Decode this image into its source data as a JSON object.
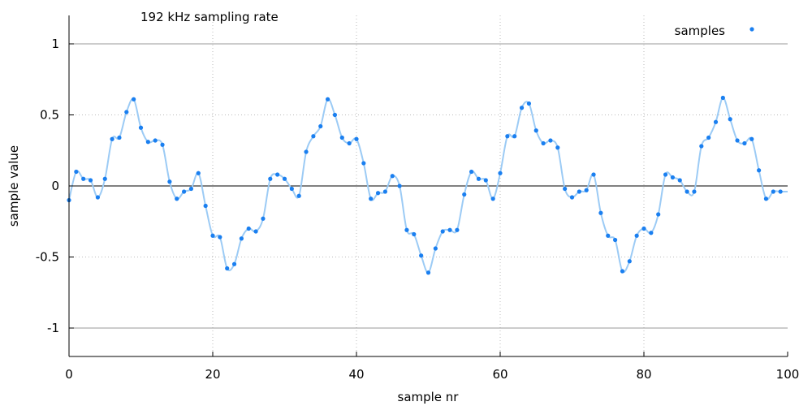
{
  "chart_data": {
    "type": "scatter",
    "title": "192 kHz sampling rate",
    "xlabel": "sample nr",
    "ylabel": "sample value",
    "xlim": [
      0,
      100
    ],
    "ylim": [
      -1.2,
      1.2
    ],
    "x_ticks": [
      0,
      20,
      40,
      60,
      80,
      100
    ],
    "y_ticks": [
      -1,
      -0.5,
      0,
      0.5,
      1
    ],
    "y_tick_labels": [
      "-1",
      "-0.5",
      "0",
      "0.5",
      "1"
    ],
    "reference_lines_y": [
      -1,
      0,
      1
    ],
    "grid": "dotted",
    "legend_position": "top-right",
    "colors": {
      "samples": "#1a7ff0",
      "curve": "#9ccbf5",
      "grid": "#bbbbbb",
      "reference": "#999999"
    },
    "series": [
      {
        "name": "samples",
        "x": [
          0,
          1,
          2,
          3,
          4,
          5,
          6,
          7,
          8,
          9,
          10,
          11,
          12,
          13,
          14,
          15,
          16,
          17,
          18,
          19,
          20,
          21,
          22,
          23,
          24,
          25,
          26,
          27,
          28,
          29,
          30,
          31,
          32,
          33,
          34,
          35,
          36,
          37,
          38,
          39,
          40,
          41,
          42,
          43,
          44,
          45,
          46,
          47,
          48,
          49,
          50,
          51,
          52,
          53,
          54,
          55,
          56,
          57,
          58,
          59,
          60,
          61,
          62,
          63,
          64,
          65,
          66,
          67,
          68,
          69,
          70,
          71,
          72,
          73,
          74,
          75,
          76,
          77,
          78,
          79,
          80,
          81,
          82,
          83,
          84,
          85,
          86,
          87,
          88,
          89,
          90,
          91,
          92,
          93,
          94,
          95,
          96,
          97,
          98,
          99
        ],
        "y": [
          -0.1,
          0.1,
          0.05,
          0.04,
          -0.08,
          0.05,
          0.33,
          0.34,
          0.52,
          0.61,
          0.41,
          0.31,
          0.32,
          0.29,
          0.03,
          -0.09,
          -0.04,
          -0.02,
          0.09,
          -0.14,
          -0.35,
          -0.36,
          -0.58,
          -0.55,
          -0.37,
          -0.3,
          -0.32,
          -0.23,
          0.05,
          0.08,
          0.05,
          -0.02,
          -0.07,
          0.24,
          0.35,
          0.42,
          0.61,
          0.5,
          0.34,
          0.3,
          0.33,
          0.16,
          -0.09,
          -0.05,
          -0.04,
          0.07,
          0.0,
          -0.31,
          -0.34,
          -0.49,
          -0.61,
          -0.44,
          -0.32,
          -0.31,
          -0.31,
          -0.06,
          0.1,
          0.05,
          0.04,
          -0.09,
          0.09,
          0.35,
          0.35,
          0.55,
          0.58,
          0.39,
          0.3,
          0.32,
          0.27,
          -0.02,
          -0.08,
          -0.04,
          -0.03,
          0.08,
          -0.19,
          -0.35,
          -0.38,
          -0.6,
          -0.53,
          -0.35,
          -0.3,
          -0.33,
          -0.2,
          0.08,
          0.06,
          0.04,
          -0.04,
          -0.04,
          0.28,
          0.34,
          0.45,
          0.62,
          0.47,
          0.32,
          0.3,
          0.33,
          0.11,
          -0.09,
          -0.04,
          -0.04
        ]
      }
    ]
  }
}
